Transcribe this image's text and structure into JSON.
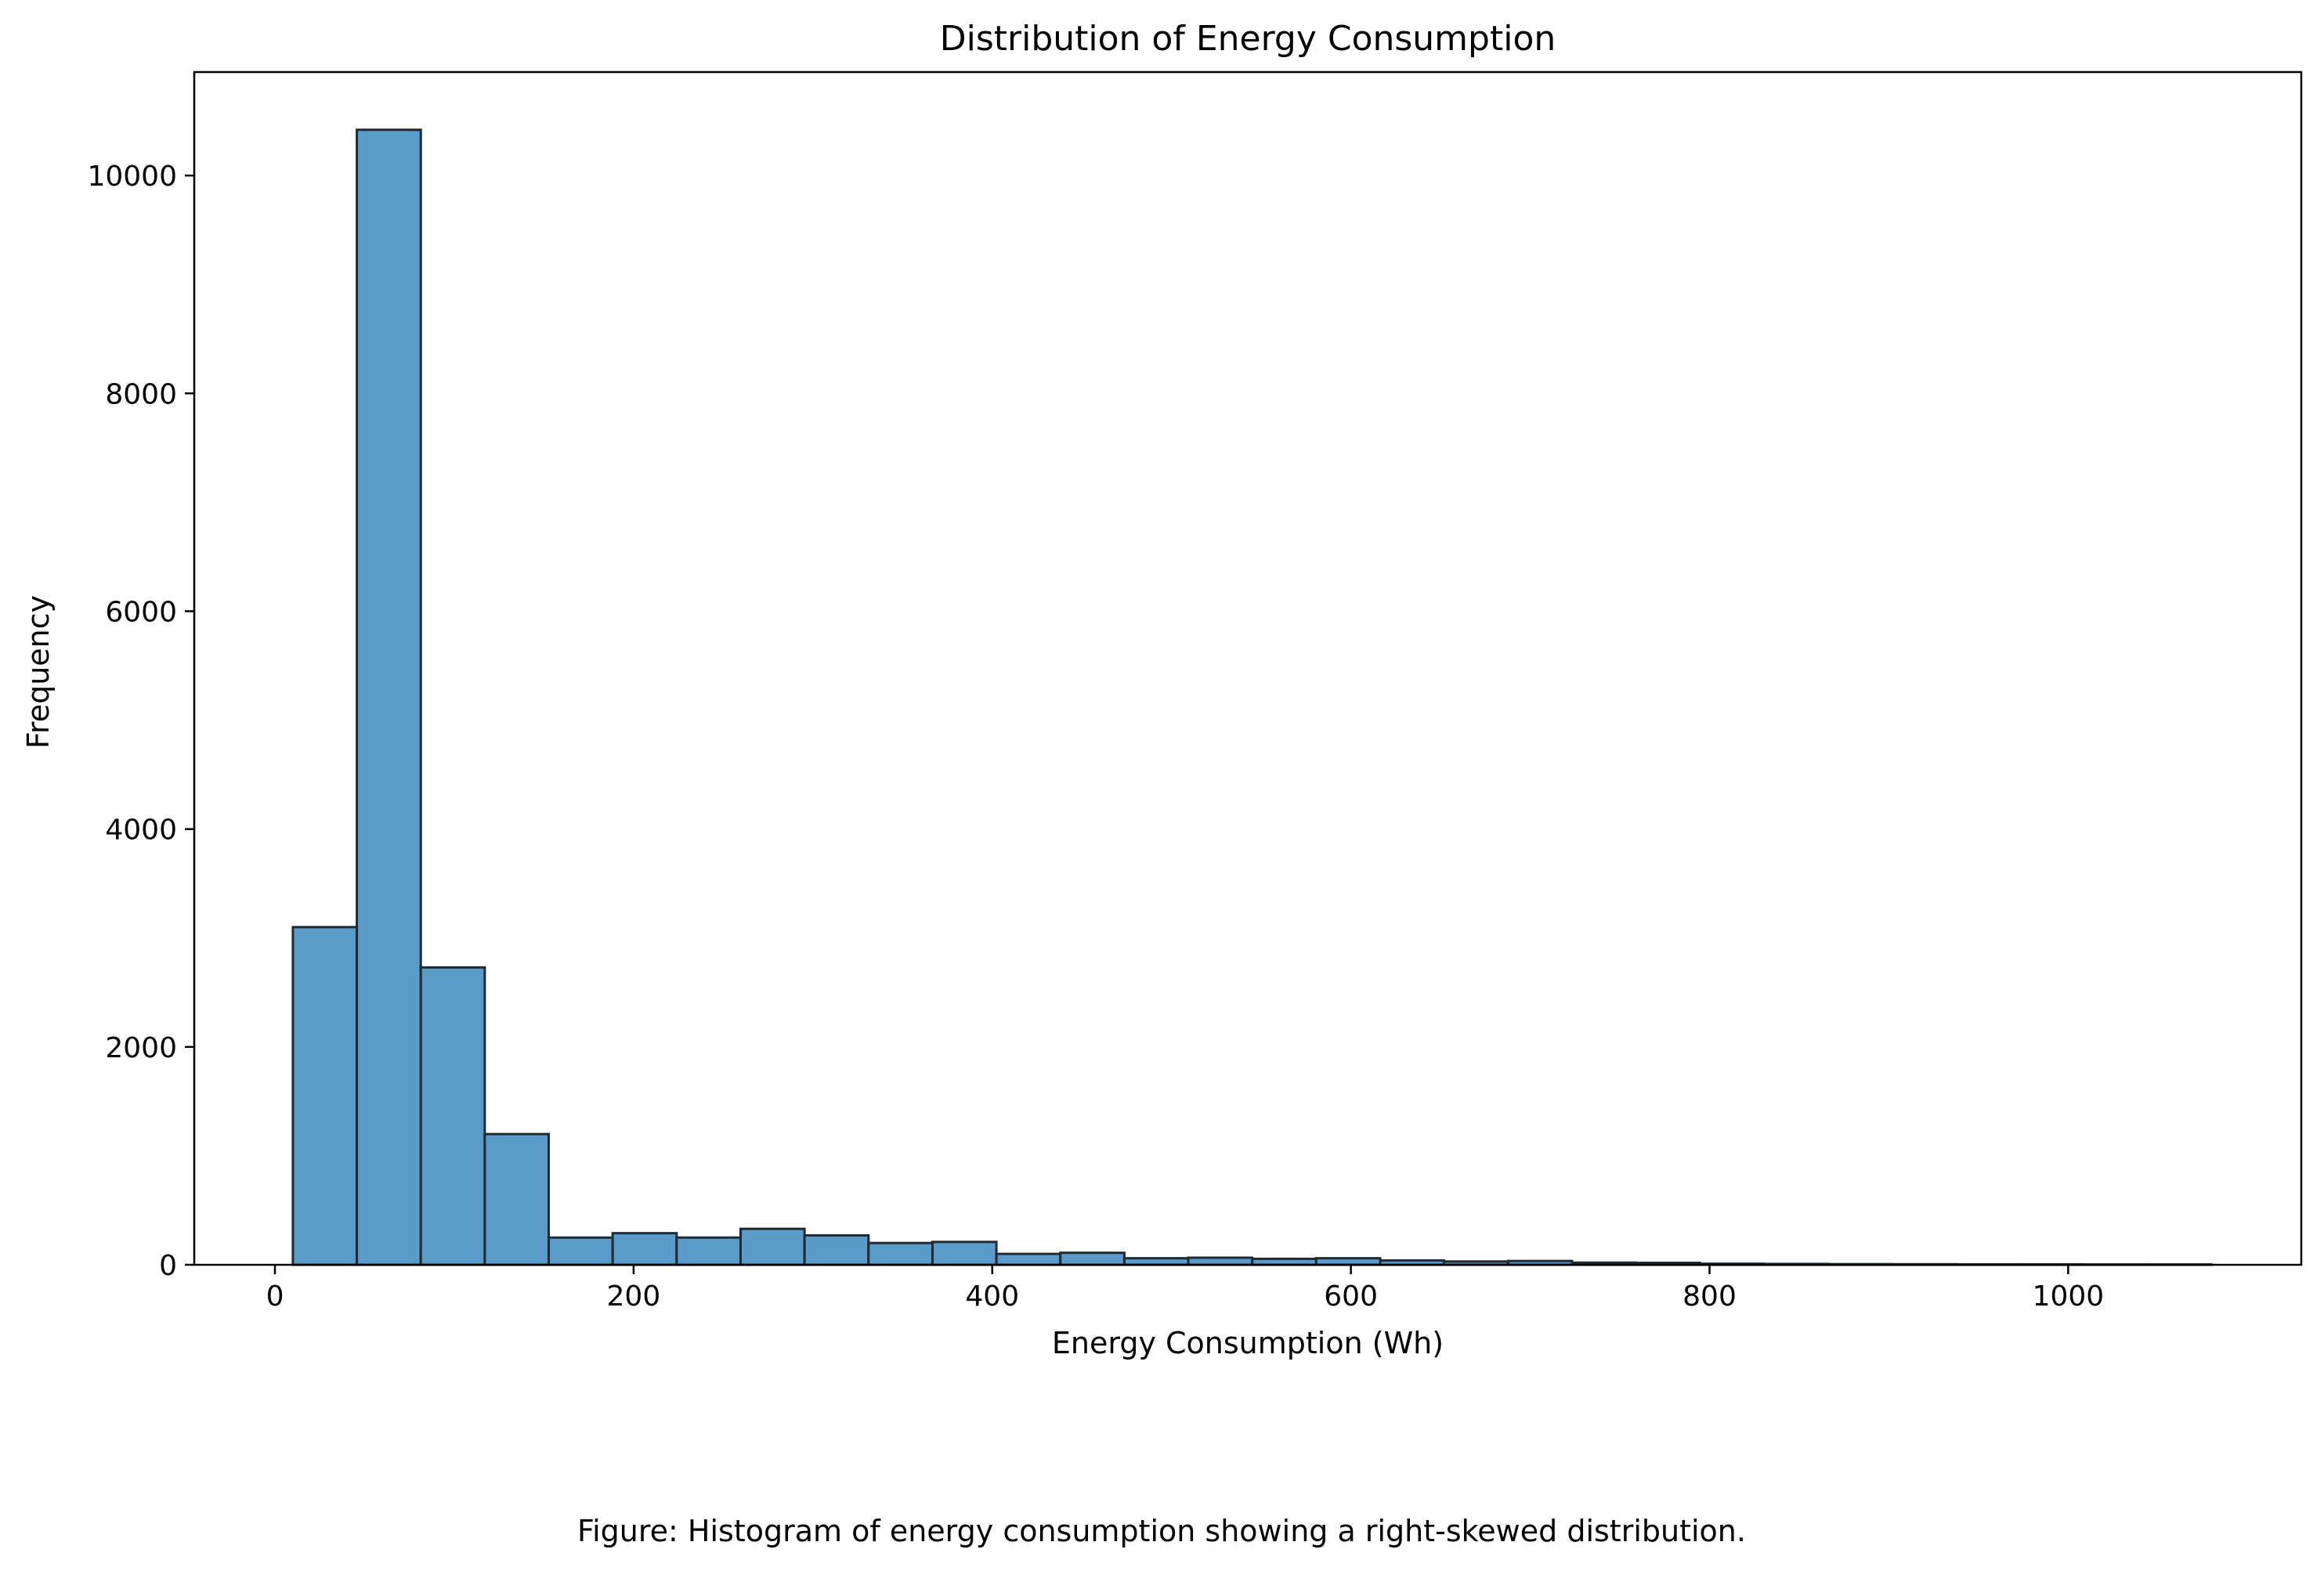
{
  "chart_data": {
    "type": "bar",
    "title": "Distribution of Energy Consumption",
    "xlabel": "Energy Consumption (Wh)",
    "ylabel": "Frequency",
    "xlim": [
      -45,
      1130
    ],
    "ylim": [
      0,
      10950
    ],
    "x_ticks": [
      0,
      200,
      400,
      600,
      800,
      1000
    ],
    "y_ticks": [
      0,
      2000,
      4000,
      6000,
      8000,
      10000
    ],
    "bin_edges": [
      10,
      45.67,
      81.33,
      117,
      152.67,
      188.33,
      224,
      259.67,
      295.33,
      331,
      366.67,
      402.33,
      438,
      473.67,
      509.33,
      545,
      580.67,
      616.33,
      652,
      687.67,
      723.33,
      759,
      794.67,
      830.33,
      866,
      901.67,
      937.33,
      973,
      1008.67,
      1044.33,
      1080
    ],
    "values": [
      3100,
      10420,
      2730,
      1200,
      250,
      290,
      250,
      330,
      270,
      200,
      210,
      100,
      110,
      60,
      65,
      55,
      60,
      40,
      30,
      35,
      20,
      18,
      10,
      8,
      6,
      5,
      4,
      4,
      3,
      3
    ],
    "grid": false,
    "bar_color": "#5b9bc9",
    "edge_color": "#1f2a33",
    "caption": "Figure: Histogram of energy consumption showing a right-skewed distribution."
  }
}
